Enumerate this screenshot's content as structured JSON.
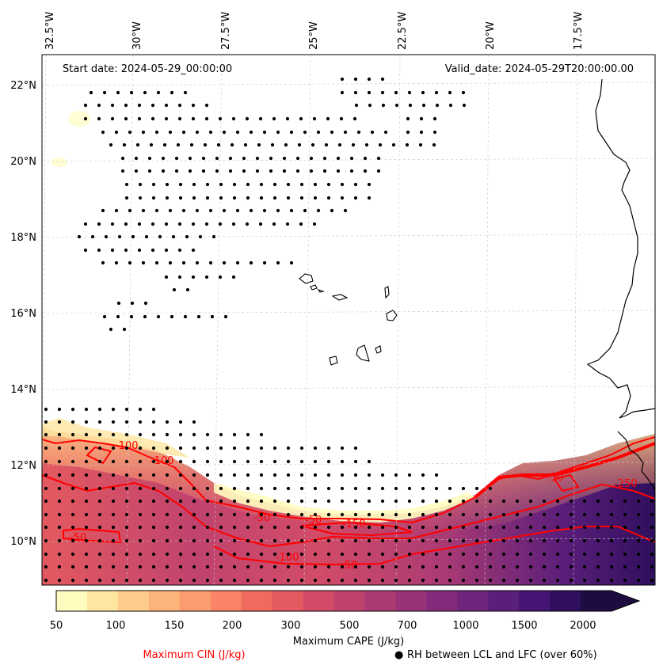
{
  "map": {
    "start_date": "Start date: 2024-05-29_00:00:00",
    "valid_date": "Valid_date: 2024-05-29T20:00:00.00",
    "lon_labels": [
      "32.5°W",
      "30°W",
      "27.5°W",
      "25°W",
      "22.5°W",
      "20°W",
      "17.5°W"
    ],
    "lat_labels": [
      "22°N",
      "20°N",
      "18°N",
      "16°N",
      "14°N",
      "12°N",
      "10°N"
    ],
    "cin_contour_labels": [
      "-100",
      "-100",
      "-50",
      "-50",
      "-50",
      "-150",
      "-100",
      "-50",
      "-250",
      "-50"
    ]
  },
  "colorbar": {
    "title": "Maximum CAPE (J/kg)",
    "tick_labels": [
      "50",
      "100",
      "150",
      "200",
      "300",
      "500",
      "700",
      "1000",
      "1500",
      "2000"
    ],
    "colors": [
      "#fffcc0",
      "#fee5a0",
      "#fdcc8a",
      "#fcb47b",
      "#fb9d70",
      "#f98566",
      "#ef6b5f",
      "#e35a60",
      "#d24c68",
      "#c0436e",
      "#ac3b74",
      "#983378",
      "#842c7b",
      "#6f257c",
      "#5b1e7a",
      "#441574",
      "#2f0f5e",
      "#1c0c40"
    ]
  },
  "legend": {
    "cin_label": "Maximum CIN (J/kg)",
    "rh_label": "RH between LCL and LFC (over 60%)",
    "rh_marker": "●"
  }
}
